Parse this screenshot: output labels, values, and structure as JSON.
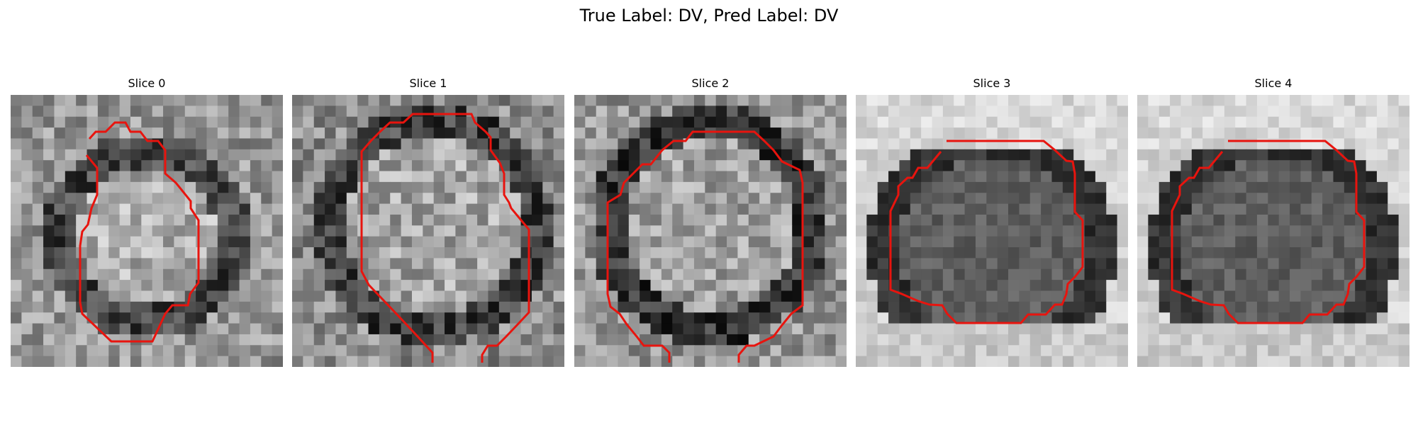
{
  "figure": {
    "suptitle": "True Label: DV, Pred Label: DV"
  },
  "panels": [
    {
      "title": "Slice 0"
    },
    {
      "title": "Slice 1"
    },
    {
      "title": "Slice 2"
    },
    {
      "title": "Slice 3"
    },
    {
      "title": "Slice 4"
    }
  ],
  "colors": {
    "contour": "#e8140e",
    "background": "#ffffff"
  }
}
